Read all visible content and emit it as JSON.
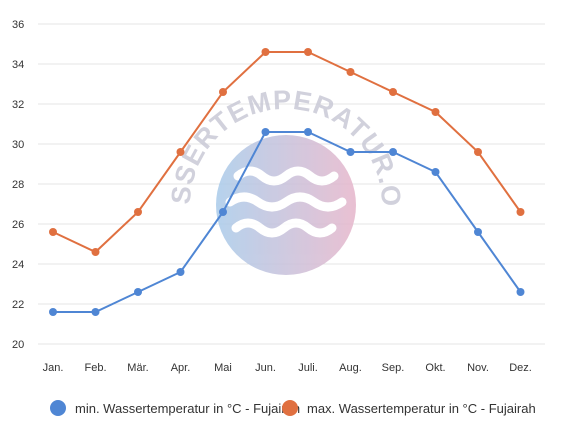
{
  "watermark": {
    "text_top": "WASSERTEMPERATUR.ORG",
    "left_color": "#a9cbea",
    "right_color": "#e6b6cb"
  },
  "chart_data": {
    "type": "line",
    "categories": [
      "Jan.",
      "Feb.",
      "Mär.",
      "Apr.",
      "Mai",
      "Jun.",
      "Juli.",
      "Aug.",
      "Sep.",
      "Okt.",
      "Nov.",
      "Dez."
    ],
    "ylim": [
      20,
      36
    ],
    "yticks": [
      20,
      22,
      24,
      26,
      28,
      30,
      32,
      34,
      36
    ],
    "grid": "horizontal",
    "legend_position": "bottom",
    "title": "",
    "xlabel": "",
    "ylabel": "",
    "series": [
      {
        "name": "min. Wassertemperatur in °C - Fujairah",
        "color": "#4f86d4",
        "values": [
          21.6,
          21.6,
          22.6,
          23.6,
          26.6,
          30.6,
          30.6,
          29.6,
          29.6,
          28.6,
          25.6,
          22.6
        ]
      },
      {
        "name": "max. Wassertemperatur in °C - Fujairah",
        "color": "#e07040",
        "values": [
          25.6,
          24.6,
          26.6,
          29.6,
          32.6,
          34.6,
          34.6,
          33.6,
          32.6,
          31.6,
          29.6,
          26.6
        ]
      }
    ]
  }
}
